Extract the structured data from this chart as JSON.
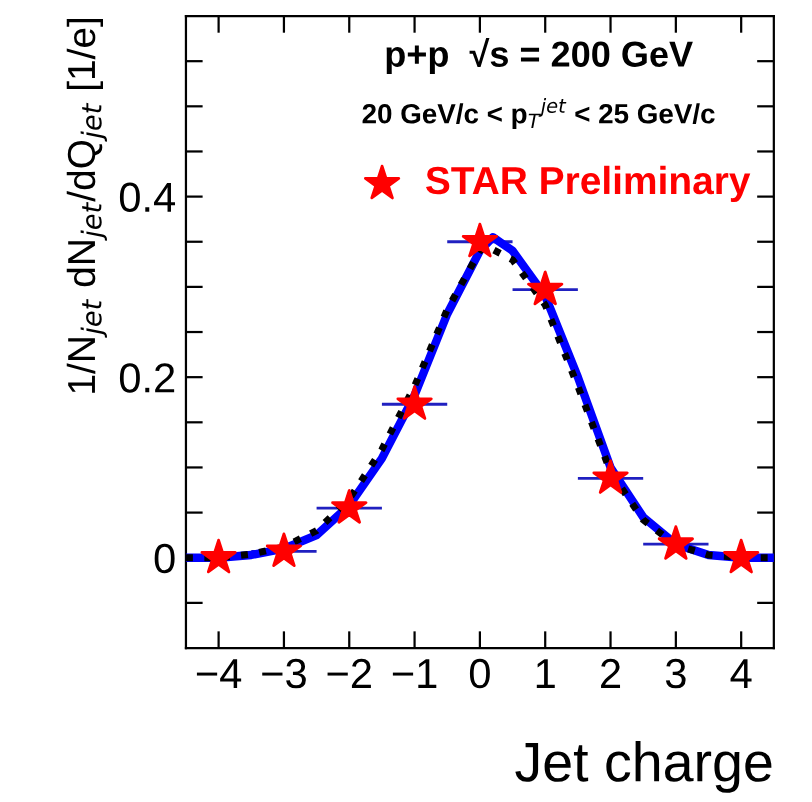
{
  "chart_data": {
    "type": "scatter",
    "title": "p+p  √s = 200 GeV",
    "subtitle": "20 GeV/c < p$_{T}$$^{jet}$ < 25 GeV/c",
    "xlabel": "Jet charge",
    "ylabel": "1/N$_{jet}$ dN$_{jet}$/dQ$_{jet}$ [1/e]",
    "xlim": [
      -4.5,
      4.5
    ],
    "xticks": [
      -4,
      -3,
      -2,
      -1,
      0,
      1,
      2,
      3,
      4
    ],
    "ylim": [
      -0.1,
      0.6
    ],
    "yticks": [
      {
        "value": -0.05,
        "label": null
      },
      0,
      {
        "value": 0.05,
        "label": null
      },
      {
        "value": 0.1,
        "label": null
      },
      {
        "value": 0.15,
        "label": null
      },
      0.2,
      {
        "value": 0.25,
        "label": null
      },
      {
        "value": 0.3,
        "label": null
      },
      {
        "value": 0.35,
        "label": null
      },
      0.4,
      {
        "value": 0.45,
        "label": null
      },
      {
        "value": 0.5,
        "label": null
      },
      {
        "value": 0.55,
        "label": null
      }
    ],
    "grid": false,
    "legend": "top right",
    "series": [
      {
        "type": "line",
        "color": "#0000ff",
        "line_style": "solid",
        "marker": "none",
        "x": [
          -4.5,
          -4,
          -3.5,
          -3,
          -2.5,
          -2,
          -1.5,
          -1,
          -0.5,
          0,
          0.2,
          0.5,
          1,
          1.5,
          2,
          2.5,
          3,
          3.5,
          4,
          4.5
        ],
        "values": [
          0,
          0,
          0.003,
          0.01,
          0.025,
          0.058,
          0.11,
          0.18,
          0.27,
          0.34,
          0.355,
          0.34,
          0.29,
          0.2,
          0.1,
          0.045,
          0.015,
          0.003,
          0,
          0
        ]
      },
      {
        "type": "line",
        "color": "#000000",
        "line_style": "dotted",
        "marker": "none",
        "x": [
          -4.5,
          -4,
          -3.5,
          -3,
          -2.5,
          -2,
          -1.5,
          -1,
          -0.5,
          0,
          0.1,
          0.5,
          1,
          1.5,
          2,
          2.5,
          3,
          3.5,
          4,
          4.5
        ],
        "values": [
          0,
          0,
          0.004,
          0.012,
          0.03,
          0.065,
          0.12,
          0.19,
          0.275,
          0.34,
          0.345,
          0.33,
          0.28,
          0.19,
          0.095,
          0.042,
          0.014,
          0.003,
          0,
          0
        ]
      },
      {
        "name": "STAR Preliminary",
        "color": "#ff0000",
        "marker": "star",
        "x": [
          -4,
          -3,
          -2,
          -1,
          0,
          1,
          2,
          3,
          4
        ],
        "values": [
          0,
          0.007,
          0.055,
          0.17,
          0.35,
          0.297,
          0.088,
          0.015,
          0
        ],
        "xerrors": [
          0.5,
          0.5,
          0.5,
          0.5,
          0.5,
          0.5,
          0.5,
          0.5,
          0.5
        ]
      }
    ]
  }
}
